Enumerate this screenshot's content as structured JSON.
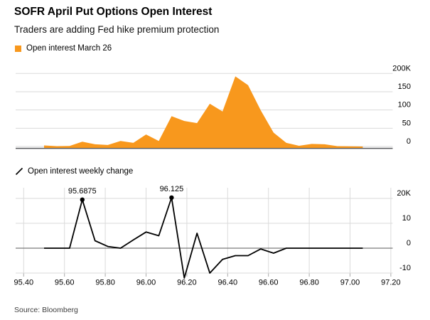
{
  "header": {
    "title": "SOFR April Put Options Open Interest",
    "subtitle": "Traders are adding Fed hike premium protection"
  },
  "source_note": "Source: Bloomberg",
  "colors": {
    "series_orange": "#F8981D",
    "series_black": "#000000",
    "grid": "#DADADA",
    "zero_line": "#7A7A7A",
    "axis_line": "#58595B",
    "tick": "#AAAAAA",
    "source_text": "#3F3F3F"
  },
  "chart_data": [
    {
      "id": "open-interest-march-26",
      "type": "area",
      "legend": "Open interest March 26",
      "x": [
        95.5,
        95.5625,
        95.625,
        95.6875,
        95.75,
        95.8125,
        95.875,
        95.9375,
        96.0,
        96.0625,
        96.125,
        96.1875,
        96.25,
        96.3125,
        96.375,
        96.4375,
        96.5,
        96.5625,
        96.625,
        96.6875,
        96.75,
        96.8125,
        96.875,
        96.9375,
        97.0,
        97.0625
      ],
      "values": [
        3,
        1,
        1.5,
        13,
        6,
        4,
        15,
        10,
        33,
        15,
        83,
        70,
        64,
        117,
        96,
        192,
        168,
        99,
        38,
        10,
        2,
        7,
        6,
        1,
        0.5,
        0
      ],
      "value_unit_suffix": "K",
      "ylim": [
        0,
        220
      ],
      "yticks": [
        0,
        50,
        100,
        150,
        200
      ],
      "ytick_labels": [
        "0",
        "50",
        "100",
        "150",
        "200K"
      ],
      "grid": "horizontal",
      "legend_position": "above-chart"
    },
    {
      "id": "open-interest-weekly-change",
      "type": "line",
      "legend": "Open interest weekly change",
      "x": [
        95.5,
        95.5625,
        95.625,
        95.6875,
        95.75,
        95.8125,
        95.875,
        95.9375,
        96.0,
        96.0625,
        96.125,
        96.1875,
        96.25,
        96.3125,
        96.375,
        96.4375,
        96.5,
        96.5625,
        96.625,
        96.6875,
        96.75,
        96.8125,
        96.875,
        96.9375,
        97.0,
        97.0625
      ],
      "values": [
        0,
        0,
        0,
        19.5,
        3,
        0.7,
        0,
        3.3,
        6.5,
        5,
        20.3,
        -12,
        6,
        -10,
        -4.5,
        -3,
        -3,
        -0.3,
        -2,
        0,
        0,
        0,
        0,
        0,
        0,
        0
      ],
      "ylim": [
        -12.5,
        24
      ],
      "yticks": [
        -10,
        0,
        10,
        20
      ],
      "ytick_labels": [
        "-10",
        "0",
        "10",
        "20K"
      ],
      "xticks": [
        95.4,
        95.6,
        95.8,
        96.0,
        96.2,
        96.4,
        96.6,
        96.8,
        97.0,
        97.2
      ],
      "xtick_labels": [
        "95.40",
        "95.60",
        "95.80",
        "96.00",
        "96.20",
        "96.40",
        "96.60",
        "96.80",
        "97.00",
        "97.20"
      ],
      "grid": "both",
      "annotations": [
        {
          "x": 95.6875,
          "y": 19.5,
          "label": "95.6875"
        },
        {
          "x": 96.125,
          "y": 20.3,
          "label": "96.125"
        }
      ],
      "legend_position": "above-chart"
    }
  ]
}
